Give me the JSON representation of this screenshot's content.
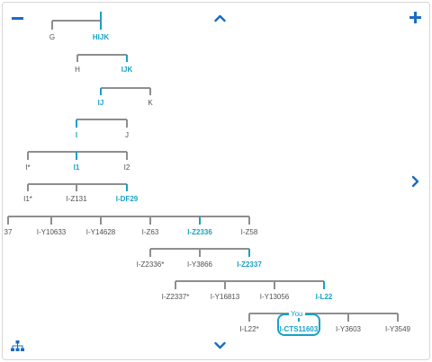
{
  "controls": {
    "zoom_out": "zoom-out",
    "zoom_in": "zoom-in",
    "pan_up": "pan-up",
    "pan_down": "pan-down",
    "pan_right": "pan-right",
    "tree_toggle": "tree-structure"
  },
  "you_label": "You",
  "colors": {
    "accent": "#17a1c6",
    "line": "#8e8e8e",
    "text": "#505050",
    "icon": "#1b6cc2"
  },
  "tree": {
    "nodes": [
      {
        "id": "G",
        "label": "G",
        "path": false
      },
      {
        "id": "HIJK",
        "label": "HIJK",
        "path": true
      },
      {
        "id": "H",
        "label": "H",
        "path": false
      },
      {
        "id": "IJK",
        "label": "IJK",
        "path": true
      },
      {
        "id": "IJ",
        "label": "IJ",
        "path": true
      },
      {
        "id": "K",
        "label": "K",
        "path": false
      },
      {
        "id": "I",
        "label": "I",
        "path": true
      },
      {
        "id": "J",
        "label": "J",
        "path": false
      },
      {
        "id": "I_star",
        "label": "I*",
        "path": false
      },
      {
        "id": "I1",
        "label": "I1",
        "path": true
      },
      {
        "id": "I2",
        "label": "I2",
        "path": false
      },
      {
        "id": "I1_star",
        "label": "I1*",
        "path": false
      },
      {
        "id": "IZ131",
        "label": "I-Z131",
        "path": false
      },
      {
        "id": "IDF29",
        "label": "I-DF29",
        "path": true
      },
      {
        "id": "n37",
        "label": "37",
        "path": false
      },
      {
        "id": "IY10633",
        "label": "I-Y10633",
        "path": false
      },
      {
        "id": "IY14628",
        "label": "I-Y14628",
        "path": false
      },
      {
        "id": "IZ63",
        "label": "I-Z63",
        "path": false
      },
      {
        "id": "IZ2336",
        "label": "I-Z2336",
        "path": true
      },
      {
        "id": "IZ58",
        "label": "I-Z58",
        "path": false
      },
      {
        "id": "IZ2336_star",
        "label": "I-Z2336*",
        "path": false
      },
      {
        "id": "IY3866",
        "label": "I-Y3866",
        "path": false
      },
      {
        "id": "IZ2337",
        "label": "I-Z2337",
        "path": true
      },
      {
        "id": "IZ2337_star",
        "label": "I-Z2337*",
        "path": false
      },
      {
        "id": "IY16813",
        "label": "I-Y16813",
        "path": false
      },
      {
        "id": "IY13056",
        "label": "I-Y13056",
        "path": false
      },
      {
        "id": "IL22",
        "label": "I-L22",
        "path": true
      },
      {
        "id": "IL22_star",
        "label": "I-L22*",
        "path": false
      },
      {
        "id": "ICTS11603",
        "label": "I-CTS11603",
        "path": true,
        "you": true
      },
      {
        "id": "IY3603",
        "label": "I-Y3603",
        "path": false
      },
      {
        "id": "IY3549",
        "label": "I-Y3549",
        "path": false
      }
    ],
    "edges": [
      [
        "HIJK",
        "G"
      ],
      [
        "HIJK",
        "HIJK"
      ],
      [
        "IJK",
        "H"
      ],
      [
        "IJK",
        "IJK"
      ],
      [
        "IJ",
        "IJ"
      ],
      [
        "IJ",
        "K"
      ],
      [
        "I",
        "I"
      ],
      [
        "I",
        "J"
      ],
      [
        "I1",
        "I_star"
      ],
      [
        "I1",
        "I1"
      ],
      [
        "I1",
        "I2"
      ],
      [
        "IDF29",
        "I1_star"
      ],
      [
        "IDF29",
        "IZ131"
      ],
      [
        "IDF29",
        "IDF29"
      ],
      [
        "IZ2336",
        "n37"
      ],
      [
        "IZ2336",
        "IY10633"
      ],
      [
        "IZ2336",
        "IY14628"
      ],
      [
        "IZ2336",
        "IZ63"
      ],
      [
        "IZ2336",
        "IZ2336"
      ],
      [
        "IZ2336",
        "IZ58"
      ],
      [
        "IZ2337",
        "IZ2336_star"
      ],
      [
        "IZ2337",
        "IY3866"
      ],
      [
        "IZ2337",
        "IZ2337"
      ],
      [
        "IL22",
        "IZ2337_star"
      ],
      [
        "IL22",
        "IY16813"
      ],
      [
        "IL22",
        "IY13056"
      ],
      [
        "IL22",
        "IL22"
      ],
      [
        "ICTS11603",
        "IL22_star"
      ],
      [
        "ICTS11603",
        "ICTS11603"
      ],
      [
        "ICTS11603",
        "IY3603"
      ],
      [
        "ICTS11603",
        "IY3549"
      ]
    ]
  }
}
